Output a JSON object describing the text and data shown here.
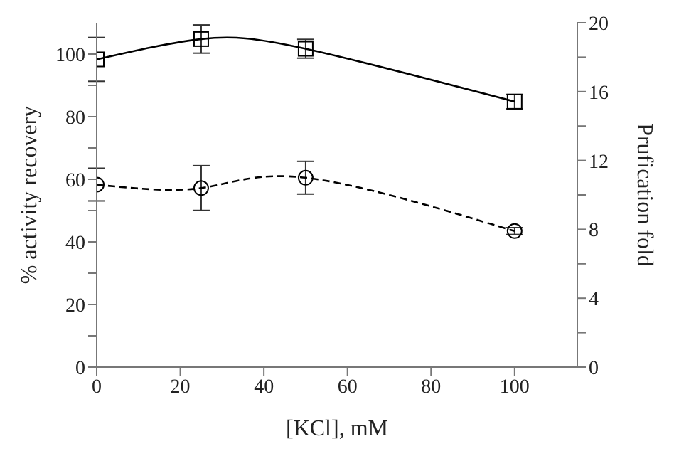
{
  "chart_data": {
    "type": "line",
    "xlabel": "[KCl], mM",
    "ylabel": "% activity recovery",
    "y2label": "Prufication fold",
    "x": [
      0,
      25,
      50,
      100
    ],
    "series": [
      {
        "color": "#000000",
        "values": [
          98.3,
          104.8,
          101.7,
          84.8
        ],
        "errors": [
          7,
          4.5,
          3,
          2.3
        ],
        "marker": "square",
        "line_style": "solid"
      },
      {
        "color": "#000000",
        "values": [
          10.6,
          10.4,
          11.0,
          7.9
        ],
        "errors": [
          0.95,
          1.3,
          0.95,
          0.2
        ],
        "marker": "circle",
        "line_style": "dashed",
        "axis": "y2"
      }
    ],
    "xlim": [
      0,
      115
    ],
    "xticks": [
      0,
      20,
      40,
      60,
      80,
      100
    ],
    "ylim": [
      0,
      110
    ],
    "yticks": [
      0,
      {
        "value": 10,
        "label": null
      },
      20,
      {
        "value": 30,
        "label": null
      },
      40,
      {
        "value": 50,
        "label": null
      },
      60,
      {
        "value": 70,
        "label": null
      },
      80,
      {
        "value": 90,
        "label": null
      },
      100
    ],
    "y2lim": [
      0,
      20
    ],
    "y2ticks": [
      0,
      {
        "value": 2,
        "label": null
      },
      4,
      {
        "value": 6,
        "label": null
      },
      8,
      {
        "value": 10,
        "label": null
      },
      12,
      {
        "value": 14,
        "label": null
      },
      16,
      {
        "value": 18,
        "label": null
      },
      20
    ],
    "grid": false,
    "legend": false
  }
}
